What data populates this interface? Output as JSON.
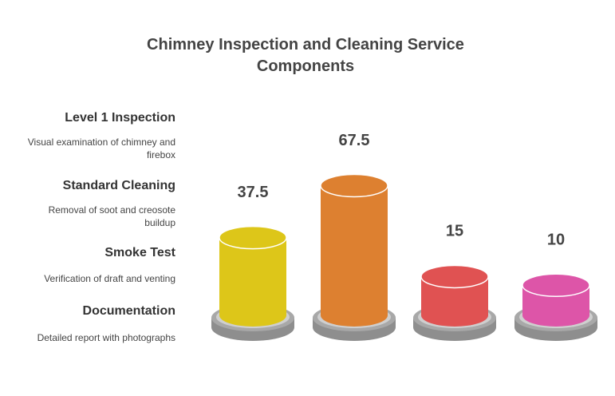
{
  "chart_data": {
    "type": "bar",
    "title": "Chimney Inspection and Cleaning Service Components",
    "categories": [
      "Level 1 Inspection",
      "Standard Cleaning",
      "Smoke Test",
      "Documentation"
    ],
    "descriptions": [
      "Visual examination of chimney and firebox",
      "Removal of soot and creosote buildup",
      "Verification of draft and venting",
      "Detailed report with photographs"
    ],
    "values": [
      37.5,
      67.5,
      15,
      10
    ],
    "colors": [
      "#ddc619",
      "#dd8030",
      "#e05252",
      "#dd55a8"
    ]
  }
}
